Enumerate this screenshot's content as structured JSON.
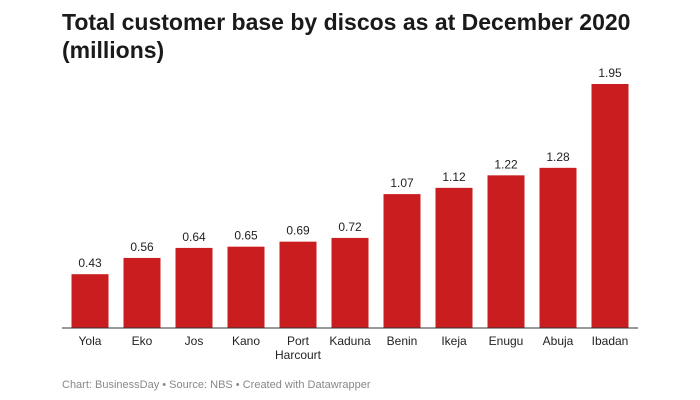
{
  "chart_data": {
    "type": "bar",
    "title": "Total customer base by discos as at December 2020 (millions)",
    "categories": [
      "Yola",
      "Eko",
      "Jos",
      "Kano",
      "Port Harcourt",
      "Kaduna",
      "Benin",
      "Ikeja",
      "Enugu",
      "Abuja",
      "Ibadan"
    ],
    "values": [
      0.43,
      0.56,
      0.64,
      0.65,
      0.69,
      0.72,
      1.07,
      1.12,
      1.22,
      1.28,
      1.95
    ],
    "value_labels": [
      "0.43",
      "0.56",
      "0.64",
      "0.65",
      "0.69",
      "0.72",
      "1.07",
      "1.12",
      "1.22",
      "1.28",
      "1.95"
    ],
    "xlabel": "",
    "ylabel": "",
    "ylim": [
      0,
      1.95
    ],
    "grid": false,
    "bar_color": "#c91d1f"
  },
  "footer": {
    "text": "Chart: BusinessDay • Source: NBS • Created with Datawrapper"
  }
}
